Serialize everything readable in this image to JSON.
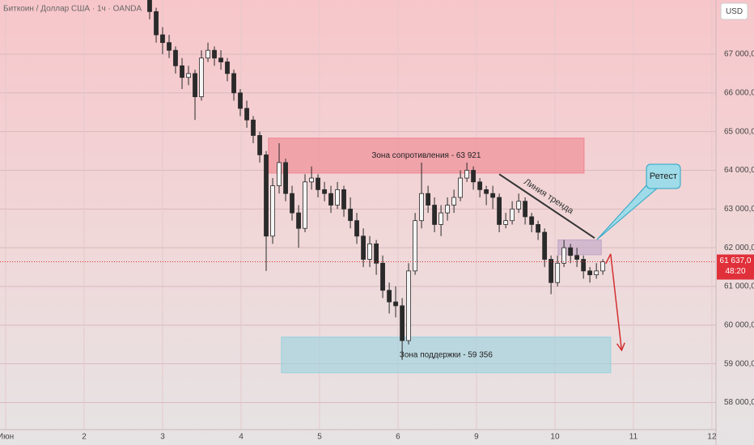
{
  "chart_data": {
    "type": "candlestick",
    "title": "Биткоин / Доллар США · 1ч · OANDA",
    "currency": "USD",
    "last_price_label": "61 637,0",
    "countdown": "48:20",
    "up_color": "#f4f4f4",
    "down_color": "#2a2a2a",
    "xlim": [
      -0.072,
      9.052
    ],
    "ylim": [
      57300,
      68400
    ],
    "grid": true,
    "xticks": [
      {
        "value": 0,
        "label": "Июн"
      },
      {
        "value": 1,
        "label": "2"
      },
      {
        "value": 2,
        "label": "3"
      },
      {
        "value": 3,
        "label": "4"
      },
      {
        "value": 4,
        "label": "5"
      },
      {
        "value": 5,
        "label": "6"
      },
      {
        "value": 6,
        "label": "9"
      },
      {
        "value": 7,
        "label": "10"
      },
      {
        "value": 8,
        "label": "11"
      },
      {
        "value": 9,
        "label": "12"
      }
    ],
    "yticks": [
      {
        "value": 58000,
        "label": "58 000,0"
      },
      {
        "value": 59000,
        "label": "59 000,0"
      },
      {
        "value": 60000,
        "label": "60 000,0"
      },
      {
        "value": 61000,
        "label": "61 000,0"
      },
      {
        "value": 62000,
        "label": "62 000,0"
      },
      {
        "value": 63000,
        "label": "63 000,0"
      },
      {
        "value": 64000,
        "label": "64 000,0"
      },
      {
        "value": 65000,
        "label": "65 000,0"
      },
      {
        "value": 66000,
        "label": "66 000,0"
      },
      {
        "value": 67000,
        "label": "67 000,0"
      }
    ],
    "x": [
      1.835,
      1.918,
      2.0,
      2.083,
      2.165,
      2.248,
      2.33,
      2.413,
      2.495,
      2.578,
      2.66,
      2.743,
      2.825,
      2.908,
      2.99,
      3.073,
      3.155,
      3.238,
      3.32,
      3.403,
      3.485,
      3.568,
      3.65,
      3.733,
      3.815,
      3.898,
      3.98,
      4.063,
      4.145,
      4.228,
      4.31,
      4.393,
      4.475,
      4.558,
      4.64,
      4.723,
      4.805,
      4.888,
      4.97,
      5.053,
      5.135,
      5.218,
      5.3,
      5.383,
      5.465,
      5.548,
      5.63,
      5.713,
      5.795,
      5.878,
      5.96,
      6.043,
      6.125,
      6.208,
      6.29,
      6.373,
      6.455,
      6.538,
      6.62,
      6.703,
      6.785,
      6.868,
      6.95,
      7.033,
      7.115,
      7.198,
      7.28,
      7.363,
      7.445,
      7.528,
      7.61
    ],
    "open": [
      68400,
      68100,
      67500,
      67300,
      67100,
      66700,
      66400,
      66500,
      65900,
      66900,
      67100,
      66900,
      66800,
      66500,
      66000,
      65600,
      65300,
      64900,
      64400,
      62300,
      63600,
      64200,
      63400,
      62900,
      62500,
      63700,
      63800,
      63500,
      63400,
      63100,
      63500,
      63000,
      62700,
      62300,
      61700,
      62100,
      61600,
      60900,
      60600,
      60500,
      59600,
      61400,
      62700,
      63400,
      63100,
      62600,
      62900,
      63100,
      63300,
      63800,
      64000,
      63700,
      63500,
      63400,
      63300,
      62600,
      62700,
      63000,
      63200,
      62800,
      62600,
      62400,
      61700,
      61100,
      61600,
      62000,
      61800,
      61700,
      61400,
      61300,
      61400
    ],
    "high": [
      68500,
      68200,
      67700,
      67500,
      67200,
      66900,
      66700,
      66600,
      67100,
      67300,
      67200,
      67100,
      66900,
      66600,
      66100,
      65800,
      65400,
      65000,
      64500,
      63800,
      64700,
      64300,
      63600,
      63100,
      63900,
      64100,
      63900,
      63700,
      63600,
      63700,
      63600,
      63300,
      62900,
      62500,
      62300,
      62200,
      61800,
      61100,
      61000,
      60700,
      61600,
      62900,
      64200,
      63600,
      63300,
      63100,
      63300,
      63500,
      64000,
      64200,
      64100,
      63800,
      63600,
      63600,
      63400,
      62900,
      63200,
      63400,
      63300,
      62900,
      62700,
      62500,
      61800,
      61800,
      62200,
      62100,
      62000,
      61800,
      61500,
      61600,
      61700
    ],
    "low": [
      67900,
      67300,
      67000,
      66900,
      66500,
      66100,
      66200,
      65300,
      65800,
      66800,
      66700,
      66600,
      66300,
      65800,
      65400,
      65100,
      64700,
      64200,
      61400,
      62100,
      63400,
      63200,
      62700,
      62000,
      62400,
      63500,
      63300,
      63200,
      62900,
      63000,
      62800,
      62500,
      62100,
      61500,
      61500,
      61300,
      60700,
      60300,
      60200,
      59100,
      59500,
      61300,
      62500,
      62900,
      62400,
      62300,
      62700,
      62900,
      63200,
      63700,
      63500,
      63300,
      63100,
      63000,
      62400,
      62500,
      62600,
      62900,
      62600,
      62400,
      62200,
      61500,
      60800,
      61000,
      61500,
      61600,
      61500,
      61200,
      61100,
      61200,
      61300
    ],
    "close": [
      68100,
      67500,
      67300,
      67100,
      66700,
      66400,
      66500,
      65900,
      66900,
      67100,
      66900,
      66800,
      66500,
      66000,
      65600,
      65300,
      64900,
      64400,
      62300,
      63600,
      64200,
      63400,
      62900,
      62500,
      63700,
      63800,
      63500,
      63400,
      63100,
      63500,
      63000,
      62700,
      62300,
      61700,
      62100,
      61600,
      60900,
      60600,
      60500,
      59600,
      61400,
      62700,
      63400,
      63100,
      62600,
      62900,
      63100,
      63300,
      63800,
      64000,
      63700,
      63500,
      63400,
      63300,
      62600,
      62700,
      63000,
      63200,
      62800,
      62600,
      62400,
      61700,
      61100,
      61600,
      62000,
      61800,
      61700,
      61400,
      61300,
      61400,
      61637
    ],
    "zones": [
      {
        "label": "Зона сопротивления - 63 921",
        "x": [
          3.35,
          7.37
        ],
        "y": [
          63930,
          64830
        ],
        "color": "#f08a94"
      },
      {
        "label": "Зона поддержки - 59 356",
        "x": [
          3.515,
          7.71
        ],
        "y": [
          58770,
          59690
        ],
        "color": "#9fd3de"
      },
      {
        "x": [
          7.04,
          7.59
        ],
        "y": [
          61820,
          62200
        ],
        "color": "#c3a9c8"
      }
    ],
    "trendline": {
      "label": "Линия тренда",
      "x": [
        6.29,
        7.505
      ],
      "y": [
        63900,
        62250
      ]
    },
    "arrow": {
      "x": [
        7.71,
        7.85
      ],
      "y": [
        61840,
        59350
      ]
    },
    "callout": "Ретест"
  }
}
